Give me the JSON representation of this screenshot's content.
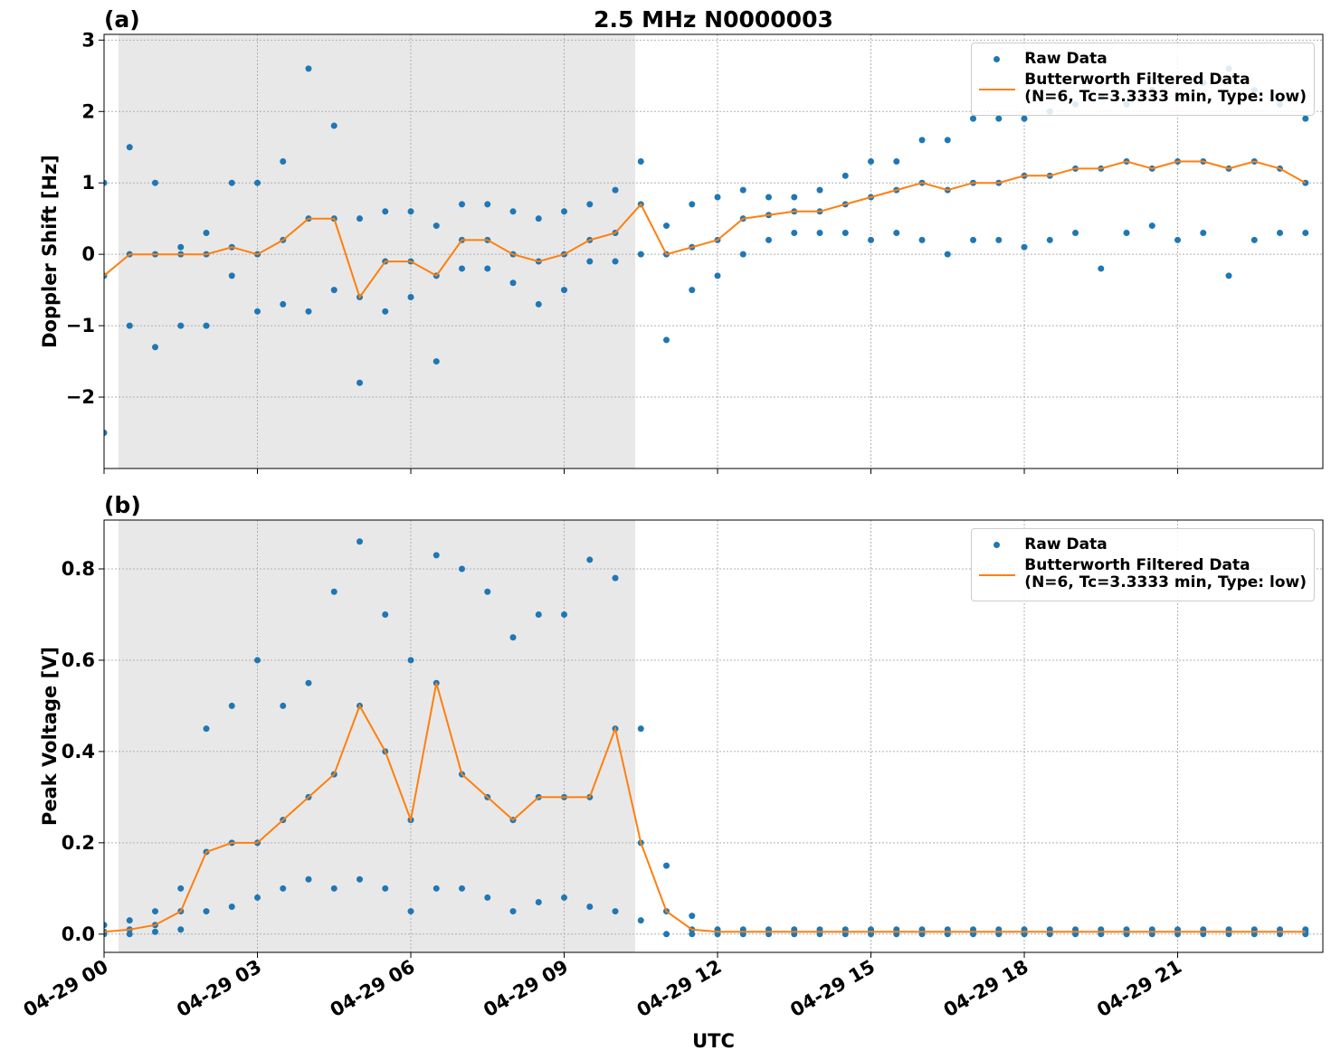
{
  "chart_data": [
    {
      "type": "line",
      "title": "2.5 MHz N0000003",
      "panel_label": "(a)",
      "ylabel": "Doppler Shift [Hz]",
      "xlim": [
        0,
        23.84
      ],
      "xticks": [
        0,
        3,
        6,
        9,
        12,
        15,
        18,
        21
      ],
      "ylim": [
        -3.0,
        3.08
      ],
      "yticks": [
        {
          "value": -2,
          "label": "−2"
        },
        {
          "value": -1,
          "label": "−1"
        },
        0,
        1,
        2,
        3
      ],
      "grid": true,
      "shaded_span": [
        0.28,
        10.39
      ],
      "legend": "upper right",
      "series": [
        {
          "name": "Raw Data",
          "style": "points",
          "color": "#1f77b4",
          "x": [
            0,
            0,
            0,
            0.5,
            0.5,
            0.5,
            1,
            1,
            1,
            1.5,
            1.5,
            1.5,
            2,
            2,
            2,
            2.5,
            2.5,
            2.5,
            3,
            3,
            3,
            3.5,
            3.5,
            3.5,
            4,
            4,
            4,
            4.5,
            4.5,
            4.5,
            5,
            5,
            5,
            5.5,
            5.5,
            5.5,
            6,
            6,
            6,
            6.5,
            6.5,
            6.5,
            7,
            7,
            7,
            7.5,
            7.5,
            7.5,
            8,
            8,
            8,
            8.5,
            8.5,
            8.5,
            9,
            9,
            9,
            9.5,
            9.5,
            9.5,
            10,
            10,
            10,
            10.5,
            10.5,
            10.5,
            11,
            11,
            11,
            11.5,
            11.5,
            11.5,
            12,
            12,
            12,
            12.5,
            12.5,
            12.5,
            13,
            13,
            13,
            13.5,
            13.5,
            13.5,
            14,
            14,
            14,
            14.5,
            14.5,
            14.5,
            15,
            15,
            15,
            15.5,
            15.5,
            15.5,
            16,
            16,
            16,
            16.5,
            16.5,
            16.5,
            17,
            17,
            17,
            17.5,
            17.5,
            17.5,
            18,
            18,
            18,
            18.5,
            18.5,
            18.5,
            19,
            19,
            19,
            19.5,
            19.5,
            19.5,
            20,
            20,
            20,
            20.5,
            20.5,
            20.5,
            21,
            21,
            21,
            21.5,
            21.5,
            21.5,
            22,
            22,
            22,
            22.5,
            22.5,
            22.5,
            23,
            23,
            23,
            23.5,
            23.5,
            23.5
          ],
          "values": [
            -2.5,
            -0.3,
            1.0,
            -1.0,
            0.0,
            1.5,
            -1.3,
            0.0,
            1.0,
            -1.0,
            0.0,
            0.1,
            -1.0,
            0.0,
            0.3,
            -0.3,
            0.1,
            1.0,
            -0.8,
            0.0,
            1.0,
            -0.7,
            0.2,
            1.3,
            -0.8,
            0.5,
            2.6,
            -0.5,
            0.5,
            1.8,
            -1.8,
            -0.6,
            0.5,
            -0.8,
            -0.1,
            0.6,
            -0.6,
            -0.1,
            0.6,
            -1.5,
            -0.3,
            0.4,
            -0.2,
            0.2,
            0.7,
            -0.2,
            0.2,
            0.7,
            -0.4,
            0.0,
            0.6,
            -0.7,
            -0.1,
            0.5,
            -0.5,
            0.0,
            0.6,
            -0.1,
            0.2,
            0.7,
            -0.1,
            0.3,
            0.9,
            0.0,
            0.7,
            1.3,
            -1.2,
            0.0,
            0.4,
            -0.5,
            0.1,
            0.7,
            -0.3,
            0.2,
            0.8,
            0.0,
            0.5,
            0.9,
            0.2,
            0.55,
            0.8,
            0.3,
            0.6,
            0.8,
            0.3,
            0.6,
            0.9,
            0.3,
            0.7,
            1.1,
            0.2,
            0.8,
            1.3,
            0.3,
            0.9,
            1.3,
            0.2,
            1.0,
            1.6,
            0.0,
            0.9,
            1.6,
            0.2,
            1.0,
            1.9,
            0.2,
            1.0,
            1.9,
            0.1,
            1.1,
            1.9,
            0.2,
            1.1,
            2.0,
            0.3,
            1.2,
            2.1,
            -0.2,
            1.2,
            2.2,
            0.3,
            1.3,
            2.1,
            0.4,
            1.2,
            2.3,
            0.2,
            1.3,
            2.2,
            0.3,
            1.3,
            2.4,
            -0.3,
            1.2,
            2.6,
            0.2,
            1.3,
            2.3,
            0.3,
            1.2,
            2.1,
            0.3,
            1.0,
            1.9
          ]
        },
        {
          "name": "Butterworth Filtered Data\n(N=6, Tc=3.3333 min, Type: low)",
          "style": "line",
          "color": "#ff7f0e",
          "x": [
            0,
            0.5,
            1,
            1.5,
            2,
            2.5,
            3,
            3.5,
            4,
            4.5,
            5,
            5.5,
            6,
            6.5,
            7,
            7.5,
            8,
            8.5,
            9,
            9.5,
            10,
            10.5,
            11,
            11.5,
            12,
            12.5,
            13,
            13.5,
            14,
            14.5,
            15,
            15.5,
            16,
            16.5,
            17,
            17.5,
            18,
            18.5,
            19,
            19.5,
            20,
            20.5,
            21,
            21.5,
            22,
            22.5,
            23,
            23.5
          ],
          "values": [
            -0.3,
            0,
            0,
            0,
            0,
            0.1,
            0,
            0.2,
            0.5,
            0.5,
            -0.6,
            -0.1,
            -0.1,
            -0.3,
            0.2,
            0.2,
            0,
            -0.1,
            0,
            0.2,
            0.3,
            0.7,
            0,
            0.1,
            0.2,
            0.5,
            0.55,
            0.6,
            0.6,
            0.7,
            0.8,
            0.9,
            1.0,
            0.9,
            1.0,
            1.0,
            1.1,
            1.1,
            1.2,
            1.2,
            1.3,
            1.2,
            1.3,
            1.3,
            1.2,
            1.3,
            1.2,
            1.0
          ]
        }
      ]
    },
    {
      "type": "line",
      "panel_label": "(b)",
      "ylabel": "Peak Voltage [V]",
      "xlabel": "UTC",
      "xlim": [
        0,
        23.84
      ],
      "xticks": [
        {
          "value": 0,
          "label": "04-29 00"
        },
        {
          "value": 3,
          "label": "04-29 03"
        },
        {
          "value": 6,
          "label": "04-29 06"
        },
        {
          "value": 9,
          "label": "04-29 09"
        },
        {
          "value": 12,
          "label": "04-29 12"
        },
        {
          "value": 15,
          "label": "04-29 15"
        },
        {
          "value": 18,
          "label": "04-29 18"
        },
        {
          "value": 21,
          "label": "04-29 21"
        }
      ],
      "ylim": [
        -0.04,
        0.907
      ],
      "yticks": [
        {
          "value": 0,
          "label": "0.0"
        },
        0.2,
        0.4,
        0.6,
        0.8
      ],
      "grid": true,
      "shaded_span": [
        0.28,
        10.39
      ],
      "legend": "upper right",
      "series": [
        {
          "name": "Raw Data",
          "style": "points",
          "color": "#1f77b4",
          "x": [
            0,
            0,
            0,
            0.5,
            0.5,
            0.5,
            1,
            1,
            1,
            1.5,
            1.5,
            1.5,
            2,
            2,
            2,
            2.5,
            2.5,
            2.5,
            3,
            3,
            3,
            3.5,
            3.5,
            3.5,
            4,
            4,
            4,
            4.5,
            4.5,
            4.5,
            5,
            5,
            5,
            5.5,
            5.5,
            5.5,
            6,
            6,
            6,
            6.5,
            6.5,
            6.5,
            7,
            7,
            7,
            7.5,
            7.5,
            7.5,
            8,
            8,
            8,
            8.5,
            8.5,
            8.5,
            9,
            9,
            9,
            9.5,
            9.5,
            9.5,
            10,
            10,
            10,
            10.5,
            10.5,
            10.5,
            11,
            11,
            11,
            11.5,
            11.5,
            11.5,
            12,
            12,
            12,
            12.5,
            12.5,
            12.5,
            13,
            13,
            13,
            13.5,
            13.5,
            13.5,
            14,
            14,
            14,
            14.5,
            14.5,
            14.5,
            15,
            15,
            15,
            15.5,
            15.5,
            15.5,
            16,
            16,
            16,
            16.5,
            16.5,
            16.5,
            17,
            17,
            17,
            17.5,
            17.5,
            17.5,
            18,
            18,
            18,
            18.5,
            18.5,
            18.5,
            19,
            19,
            19,
            19.5,
            19.5,
            19.5,
            20,
            20,
            20,
            20.5,
            20.5,
            20.5,
            21,
            21,
            21,
            21.5,
            21.5,
            21.5,
            22,
            22,
            22,
            22.5,
            22.5,
            22.5,
            23,
            23,
            23,
            23.5,
            23.5,
            23.5
          ],
          "values": [
            0,
            0.005,
            0.02,
            0,
            0.01,
            0.03,
            0.005,
            0.02,
            0.05,
            0.01,
            0.05,
            0.1,
            0.05,
            0.18,
            0.45,
            0.06,
            0.2,
            0.5,
            0.08,
            0.2,
            0.6,
            0.1,
            0.25,
            0.5,
            0.12,
            0.3,
            0.55,
            0.1,
            0.35,
            0.75,
            0.12,
            0.5,
            0.86,
            0.1,
            0.4,
            0.7,
            0.05,
            0.25,
            0.6,
            0.1,
            0.55,
            0.83,
            0.1,
            0.35,
            0.8,
            0.08,
            0.3,
            0.75,
            0.05,
            0.25,
            0.65,
            0.07,
            0.3,
            0.7,
            0.08,
            0.3,
            0.7,
            0.06,
            0.3,
            0.82,
            0.05,
            0.45,
            0.78,
            0.03,
            0.2,
            0.45,
            0,
            0.05,
            0.15,
            0,
            0.01,
            0.04,
            0,
            0.005,
            0.01,
            0,
            0.005,
            0.01,
            0,
            0.005,
            0.01,
            0,
            0.005,
            0.01,
            0,
            0.005,
            0.01,
            0,
            0.005,
            0.01,
            0,
            0.005,
            0.01,
            0,
            0.005,
            0.01,
            0,
            0.005,
            0.01,
            0,
            0.005,
            0.01,
            0,
            0.005,
            0.01,
            0,
            0.005,
            0.01,
            0,
            0.005,
            0.01,
            0,
            0.005,
            0.01,
            0,
            0.005,
            0.01,
            0,
            0.005,
            0.01,
            0,
            0.005,
            0.01,
            0,
            0.005,
            0.01,
            0,
            0.005,
            0.01,
            0,
            0.005,
            0.01,
            0,
            0.005,
            0.01,
            0,
            0.005,
            0.01,
            0,
            0.005,
            0.01,
            0,
            0.005,
            0.01
          ]
        },
        {
          "name": "Butterworth Filtered Data\n(N=6, Tc=3.3333 min, Type: low)",
          "style": "line",
          "color": "#ff7f0e",
          "x": [
            0,
            0.5,
            1,
            1.5,
            2,
            2.5,
            3,
            3.5,
            4,
            4.5,
            5,
            5.5,
            6,
            6.5,
            7,
            7.5,
            8,
            8.5,
            9,
            9.5,
            10,
            10.5,
            11,
            11.5,
            12,
            12.5,
            13,
            13.5,
            14,
            14.5,
            15,
            15.5,
            16,
            16.5,
            17,
            17.5,
            18,
            18.5,
            19,
            19.5,
            20,
            20.5,
            21,
            21.5,
            22,
            22.5,
            23,
            23.5
          ],
          "values": [
            0.005,
            0.01,
            0.02,
            0.05,
            0.18,
            0.2,
            0.2,
            0.25,
            0.3,
            0.35,
            0.5,
            0.4,
            0.25,
            0.55,
            0.35,
            0.3,
            0.25,
            0.3,
            0.3,
            0.3,
            0.45,
            0.2,
            0.05,
            0.01,
            0.005,
            0.005,
            0.005,
            0.005,
            0.005,
            0.005,
            0.005,
            0.005,
            0.005,
            0.005,
            0.005,
            0.005,
            0.005,
            0.005,
            0.005,
            0.005,
            0.005,
            0.005,
            0.005,
            0.005,
            0.005,
            0.005,
            0.005,
            0.005
          ]
        }
      ]
    }
  ]
}
